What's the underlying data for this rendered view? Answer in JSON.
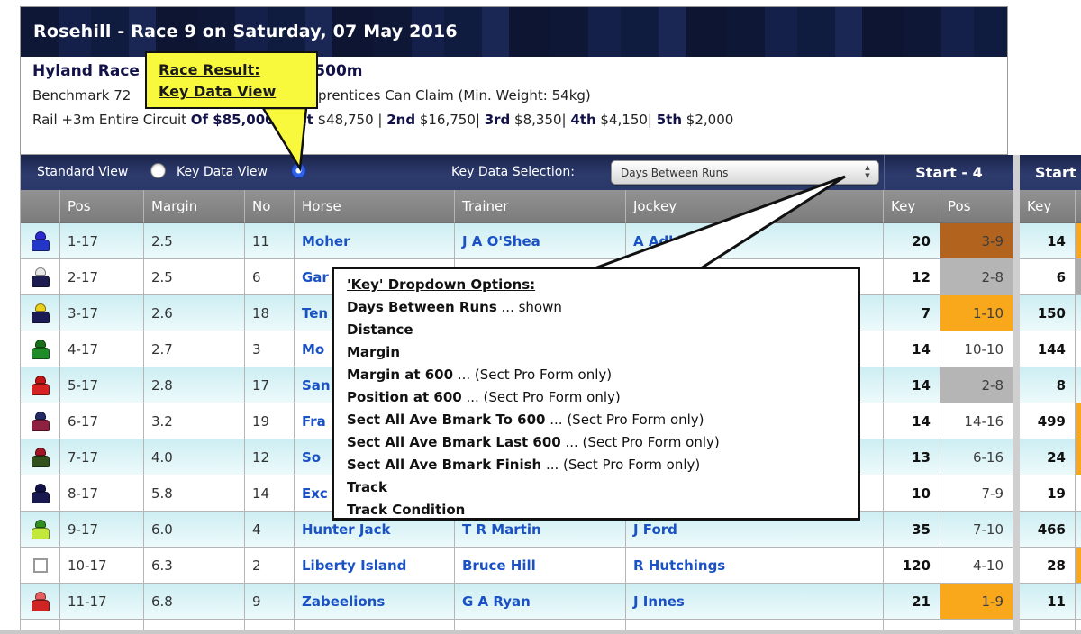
{
  "title": "Rosehill - Race 9 on Saturday, 07 May 2016",
  "race_info": {
    "line1_left": "Hyland Race",
    "line1_right": "1,500m",
    "line2_left": "Benchmark 72",
    "line2_right": "prentices Can Claim (Min. Weight: 54kg)",
    "line3_segments": [
      {
        "t": "Rail +3m Entire Circuit ",
        "b": false
      },
      {
        "t": "Of $85,000 - 1st",
        "b": true
      },
      {
        "t": " $48,750 | ",
        "b": false
      },
      {
        "t": "2nd",
        "b": true
      },
      {
        "t": " $16,750| ",
        "b": false
      },
      {
        "t": "3rd",
        "b": true
      },
      {
        "t": " $8,350| ",
        "b": false
      },
      {
        "t": "4th",
        "b": true
      },
      {
        "t": " $4,150| ",
        "b": false
      },
      {
        "t": "5th",
        "b": true
      },
      {
        "t": " $2,000",
        "b": false
      }
    ]
  },
  "toolbar": {
    "standard_label": "Standard View",
    "keydata_label": "Key Data View",
    "selection_label": "Key Data Selection:",
    "dropdown_value": "Days Between Runs",
    "start4_header": "Start - 4",
    "start_next_header": "Start -"
  },
  "table_headers": {
    "pos": "Pos",
    "margin": "Margin",
    "no": "No",
    "horse": "Horse",
    "trainer": "Trainer",
    "jockey": "Jockey",
    "key": "Key"
  },
  "colors": {
    "gold": "#f9a81c",
    "silver": "#b5b5b5",
    "bronze": "#b2641f",
    "sliver_silver": "#ababab",
    "link_blue": "#1a52c4",
    "callout_yellow": "#f8f83c",
    "toolbar_navy": "#2c3a6c"
  },
  "rows": [
    {
      "silks": {
        "cap": "#2a2ad0",
        "body": "#2336c8"
      },
      "pos": "1-17",
      "margin": "2.5",
      "no": "11",
      "horse": "Moher",
      "trainer": "J A O'Shea",
      "jockey": "A Adkins",
      "key1": "20",
      "pos4": "3-9",
      "pos4_bg": "bronze",
      "key2": "14",
      "sliver": "orange"
    },
    {
      "silks": {
        "cap": "#e8e8e8",
        "body": "#1c1c50"
      },
      "pos": "2-17",
      "margin": "2.5",
      "no": "6",
      "horse": "Gar",
      "trainer": "",
      "jockey": "",
      "key1": "12",
      "pos4": "2-8",
      "pos4_bg": "silver",
      "key2": "6",
      "sliver": "silver"
    },
    {
      "silks": {
        "cap": "#ecd11c",
        "body": "#1a1a55"
      },
      "pos": "3-17",
      "margin": "2.6",
      "no": "18",
      "horse": "Ten",
      "trainer": "",
      "jockey": "",
      "key1": "7",
      "pos4": "1-10",
      "pos4_bg": "gold",
      "key2": "150",
      "sliver": "row"
    },
    {
      "silks": {
        "cap": "#177017",
        "body": "#1f8c28"
      },
      "pos": "4-17",
      "margin": "2.7",
      "no": "3",
      "horse": "Mo",
      "trainer": "",
      "jockey": "",
      "key1": "14",
      "pos4": "10-10",
      "pos4_bg": null,
      "key2": "144",
      "sliver": "white"
    },
    {
      "silks": {
        "cap": "#c31414",
        "body": "#d62222"
      },
      "pos": "5-17",
      "margin": "2.8",
      "no": "17",
      "horse": "San",
      "trainer": "",
      "jockey": "",
      "key1": "14",
      "pos4": "2-8",
      "pos4_bg": "silver",
      "key2": "8",
      "sliver": "row"
    },
    {
      "silks": {
        "cap": "#262a66",
        "body": "#8e2040"
      },
      "pos": "6-17",
      "margin": "3.2",
      "no": "19",
      "horse": "Fra",
      "trainer": "",
      "jockey": "",
      "key1": "14",
      "pos4": "14-16",
      "pos4_bg": null,
      "key2": "499",
      "sliver": "orange"
    },
    {
      "silks": {
        "cap": "#a31525",
        "body": "#31511f"
      },
      "pos": "7-17",
      "margin": "4.0",
      "no": "12",
      "horse": "So",
      "trainer": "",
      "jockey": "",
      "key1": "13",
      "pos4": "6-16",
      "pos4_bg": null,
      "key2": "24",
      "sliver": "orange"
    },
    {
      "silks": {
        "cap": "#11114a",
        "body": "#191950"
      },
      "pos": "8-17",
      "margin": "5.8",
      "no": "14",
      "horse": "Exc",
      "trainer": "",
      "jockey": "",
      "key1": "10",
      "pos4": "7-9",
      "pos4_bg": null,
      "key2": "19",
      "sliver": "white"
    },
    {
      "silks": {
        "cap": "#2f8f1f",
        "body": "#c3e83c"
      },
      "pos": "9-17",
      "margin": "6.0",
      "no": "4",
      "horse": "Hunter Jack",
      "trainer": "T R Martin",
      "jockey": "J Ford",
      "key1": "35",
      "pos4": "7-10",
      "pos4_bg": null,
      "key2": "466",
      "sliver": "row"
    },
    {
      "silks": "empty",
      "pos": "10-17",
      "margin": "6.3",
      "no": "2",
      "horse": "Liberty Island",
      "trainer": "Bruce Hill",
      "jockey": "R Hutchings",
      "key1": "120",
      "pos4": "4-10",
      "pos4_bg": null,
      "key2": "28",
      "sliver": "orange"
    },
    {
      "silks": {
        "cap": "#e66060",
        "body": "#d02424"
      },
      "pos": "11-17",
      "margin": "6.8",
      "no": "9",
      "horse": "Zabeelions",
      "trainer": "G A Ryan",
      "jockey": "J Innes",
      "key1": "21",
      "pos4": "1-9",
      "pos4_bg": "gold",
      "key2": "11",
      "sliver": "row"
    }
  ],
  "callout_race_result": {
    "line1": "Race Result:",
    "line2": "Key Data View"
  },
  "callout_key_options": {
    "title": "'Key' Dropdown Options:",
    "items": [
      {
        "name": "Days Between Runs",
        "note": "... shown"
      },
      {
        "name": "Distance",
        "note": ""
      },
      {
        "name": "Margin",
        "note": ""
      },
      {
        "name": "Margin at 600",
        "note": "... (Sect Pro Form only)"
      },
      {
        "name": "Position at 600",
        "note": "... (Sect Pro Form only)"
      },
      {
        "name": "Sect All Ave Bmark To 600",
        "note": "... (Sect Pro Form only)"
      },
      {
        "name": "Sect All Ave Bmark Last 600",
        "note": "... (Sect Pro Form only)"
      },
      {
        "name": "Sect All Ave Bmark Finish",
        "note": "... (Sect Pro Form only)"
      },
      {
        "name": "Track",
        "note": ""
      },
      {
        "name": "Track Condition",
        "note": ""
      }
    ]
  }
}
